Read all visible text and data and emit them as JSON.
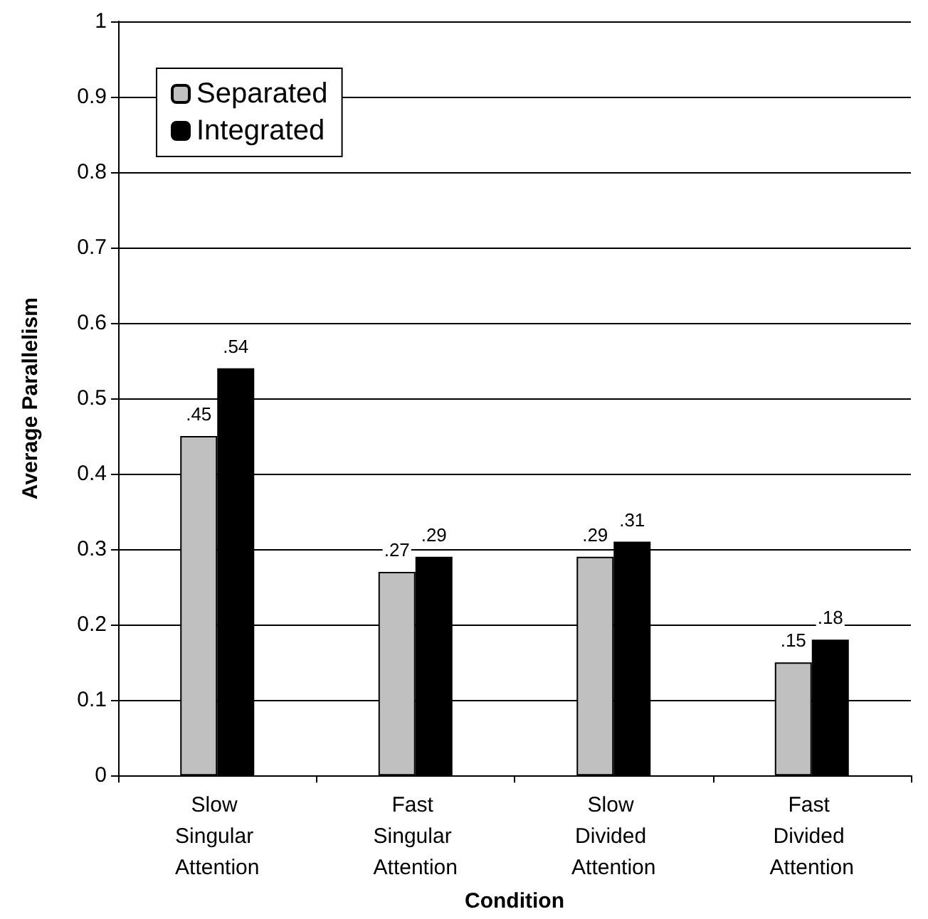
{
  "chart_data": {
    "type": "bar",
    "xlabel": "Condition",
    "ylabel": "Average Parallelism",
    "categories": [
      "Slow Singular Attention",
      "Fast Singular Attention",
      "Slow Divided Attention",
      "Fast Divided Attention"
    ],
    "series": [
      {
        "name": "Separated",
        "color": "#c0c0c0",
        "values": [
          0.45,
          0.27,
          0.29,
          0.15
        ],
        "value_labels": [
          ".45",
          ".27",
          ".29",
          ".15"
        ]
      },
      {
        "name": "Integrated",
        "color": "#000000",
        "values": [
          0.54,
          0.29,
          0.31,
          0.18
        ],
        "value_labels": [
          ".54",
          ".29",
          ".31",
          ".18"
        ]
      }
    ],
    "ylim": [
      0,
      1
    ],
    "yticks": [
      0,
      0.1,
      0.2,
      0.3,
      0.4,
      0.5,
      0.6,
      0.7,
      0.8,
      0.9,
      1
    ],
    "grid": "y",
    "legend": "top left"
  }
}
